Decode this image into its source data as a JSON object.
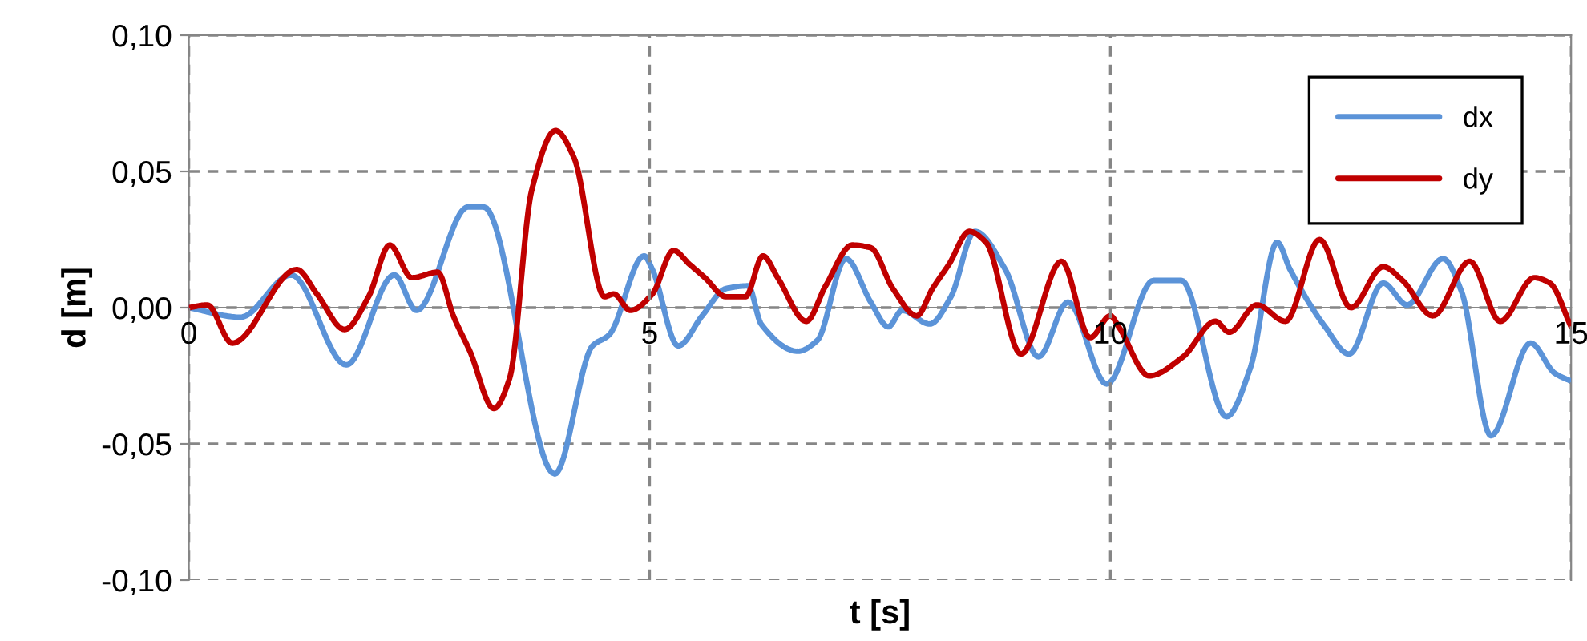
{
  "chart_data": {
    "type": "line",
    "xlabel": "t [s]",
    "ylabel": "d [m]",
    "xlim": [
      0,
      15
    ],
    "ylim": [
      -0.1,
      0.1
    ],
    "xticks": [
      0,
      5,
      10,
      15
    ],
    "yticks": [
      {
        "value": -0.1,
        "label": "-0,10"
      },
      {
        "value": -0.05,
        "label": "-0,05"
      },
      {
        "value": 0,
        "label": "0,00"
      },
      {
        "value": 0.05,
        "label": "0,05"
      },
      {
        "value": 0.1,
        "label": "0,10"
      }
    ],
    "grid": true,
    "legend": "top right",
    "line_style": "solid",
    "marker": "none",
    "series": [
      {
        "name": "dx",
        "color": "#5b93d8",
        "x": [
          0,
          0.56,
          1.11,
          1.71,
          2.23,
          2.47,
          3.03,
          3.2,
          3.97,
          4.38,
          4.56,
          4.94,
          5.03,
          5.31,
          5.57,
          5.83,
          6.07,
          6.21,
          6.61,
          6.82,
          7.13,
          7.4,
          7.59,
          7.74,
          8.04,
          8.27,
          8.53,
          8.86,
          9.22,
          9.54,
          9.96,
          10.47,
          10.77,
          11.26,
          11.52,
          11.81,
          11.95,
          12.33,
          12.59,
          12.96,
          13.22,
          13.61,
          13.81,
          14.13,
          14.56,
          14.82,
          15
        ],
        "values": [
          0,
          -0.0035,
          0.012,
          -0.021,
          0.012,
          -0.001,
          0.037,
          0.037,
          -0.061,
          -0.014,
          -0.01,
          0.019,
          0.014,
          -0.014,
          -0.003,
          0.007,
          0.008,
          -0.006,
          -0.016,
          -0.012,
          0.018,
          0.002,
          -0.007,
          -0.001,
          -0.006,
          0.004,
          0.028,
          0.014,
          -0.018,
          0.002,
          -0.028,
          0.01,
          0.01,
          -0.04,
          -0.022,
          0.024,
          0.014,
          -0.007,
          -0.017,
          0.009,
          0.001,
          0.018,
          0.006,
          -0.047,
          -0.013,
          -0.024,
          -0.027
        ]
      },
      {
        "name": "dy",
        "color": "#c00000",
        "x": [
          0,
          0.2,
          0.47,
          1.17,
          1.39,
          1.69,
          1.95,
          2.18,
          2.42,
          2.7,
          2.87,
          3.05,
          3.31,
          3.48,
          3.72,
          3.98,
          4.18,
          4.51,
          4.61,
          4.79,
          5.03,
          5.26,
          5.43,
          5.6,
          5.83,
          6.04,
          6.23,
          6.39,
          6.7,
          6.91,
          7.2,
          7.4,
          7.64,
          7.9,
          8.07,
          8.25,
          8.47,
          8.65,
          9.03,
          9.47,
          9.78,
          10.0,
          10.09,
          10.42,
          10.79,
          11.14,
          11.29,
          11.59,
          11.9,
          12.27,
          12.61,
          12.96,
          13.17,
          13.5,
          13.9,
          14.23,
          14.6,
          14.77,
          15
        ],
        "values": [
          0,
          0.001,
          -0.013,
          0.014,
          0.005,
          -0.008,
          0.004,
          0.023,
          0.011,
          0.013,
          -0.003,
          -0.016,
          -0.037,
          -0.026,
          0.043,
          0.065,
          0.055,
          0.004,
          0.005,
          -0.001,
          0.005,
          0.021,
          0.016,
          0.011,
          0.004,
          0.004,
          0.019,
          0.011,
          -0.005,
          0.008,
          0.023,
          0.022,
          0.007,
          -0.003,
          0.007,
          0.016,
          0.028,
          0.024,
          -0.017,
          0.017,
          -0.011,
          -0.003,
          -0.007,
          -0.025,
          -0.018,
          -0.005,
          -0.009,
          0.001,
          -0.005,
          0.025,
          0.0,
          0.015,
          0.01,
          -0.003,
          0.017,
          -0.005,
          0.011,
          0.009,
          -0.007
        ]
      }
    ]
  }
}
